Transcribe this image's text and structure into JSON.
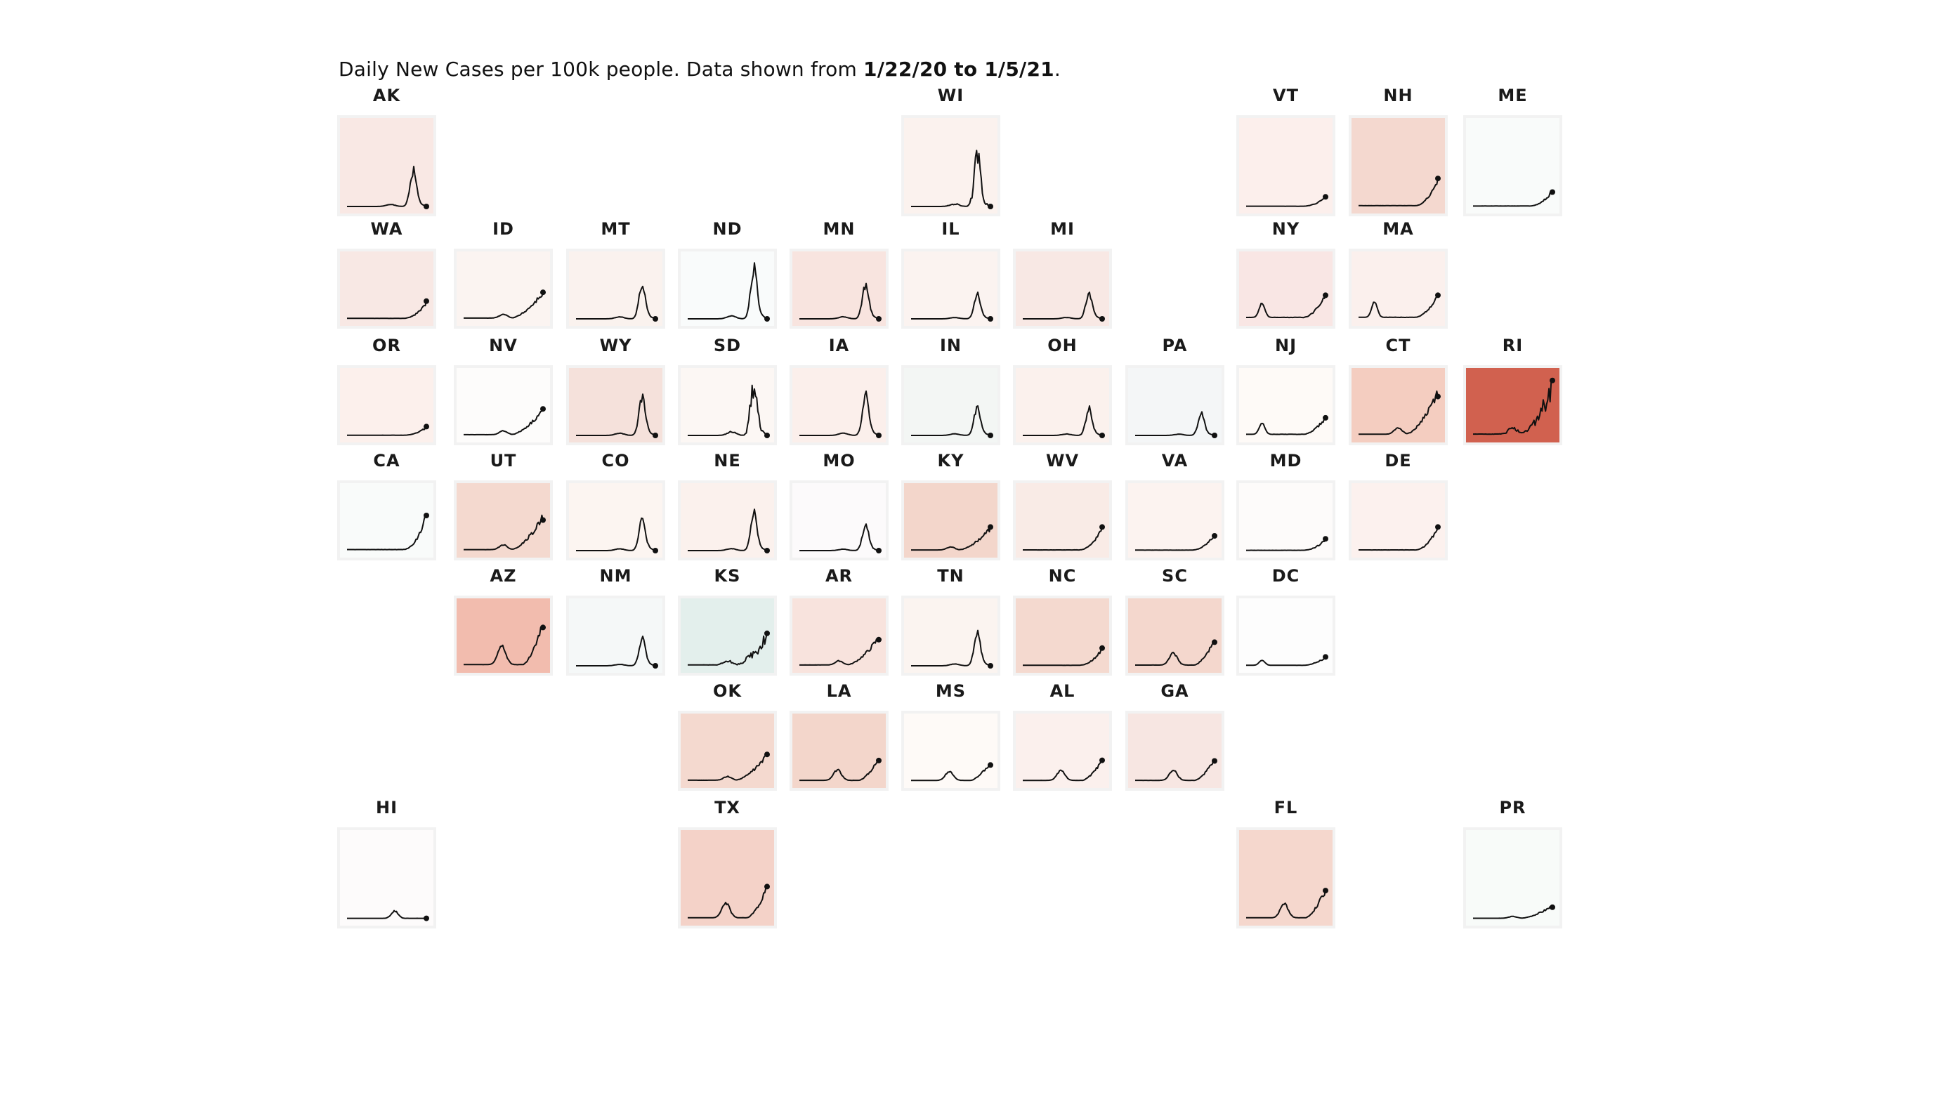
{
  "title": {
    "prefix": "Daily New Cases per 100k people. Data shown from ",
    "range": "1/22/20 to 1/5/21",
    "suffix": "."
  },
  "chart_data": {
    "type": "line",
    "layout": "tile-grid-map",
    "series_kind": "daily new cases per 100k",
    "tiles": [
      {
        "label": "AK",
        "row": 0,
        "col": 0,
        "fill": "#f9e8e4",
        "shape": "peakLate",
        "h": 0.5
      },
      {
        "label": "WI",
        "row": 0,
        "col": 5,
        "fill": "#fbf2ee",
        "shape": "peakLate",
        "h": 0.7,
        "spiky": true
      },
      {
        "label": "VT",
        "row": 0,
        "col": 8,
        "fill": "#fcefec",
        "shape": "riseEnd",
        "h": 0.12
      },
      {
        "label": "NH",
        "row": 0,
        "col": 9,
        "fill": "#f4d8cf",
        "shape": "riseEnd",
        "h": 0.35
      },
      {
        "label": "ME",
        "row": 0,
        "col": 10,
        "fill": "#f9fbfa",
        "shape": "riseEnd",
        "h": 0.18
      },
      {
        "label": "WA",
        "row": 1,
        "col": 0,
        "fill": "#f8e8e4",
        "shape": "riseEnd",
        "h": 0.3
      },
      {
        "label": "ID",
        "row": 1,
        "col": 1,
        "fill": "#fbf4f1",
        "shape": "jaggedRise",
        "h": 0.45
      },
      {
        "label": "MT",
        "row": 1,
        "col": 2,
        "fill": "#faf2ee",
        "shape": "peakLate",
        "h": 0.55
      },
      {
        "label": "ND",
        "row": 1,
        "col": 3,
        "fill": "#f9fbfb",
        "shape": "peakLate",
        "h": 0.95
      },
      {
        "label": "MN",
        "row": 1,
        "col": 4,
        "fill": "#f8e4df",
        "shape": "peakLate",
        "h": 0.6
      },
      {
        "label": "IL",
        "row": 1,
        "col": 5,
        "fill": "#fbf3f0",
        "shape": "peakLate",
        "h": 0.45
      },
      {
        "label": "MI",
        "row": 1,
        "col": 6,
        "fill": "#f8e8e4",
        "shape": "peakLate",
        "h": 0.45
      },
      {
        "label": "NY",
        "row": 1,
        "col": 8,
        "fill": "#f9e6e4",
        "shape": "twoHump",
        "h": 0.4
      },
      {
        "label": "MA",
        "row": 1,
        "col": 9,
        "fill": "#fbf0ed",
        "shape": "twoHump",
        "h": 0.4
      },
      {
        "label": "OR",
        "row": 2,
        "col": 0,
        "fill": "#fcf0ec",
        "shape": "riseEnd",
        "h": 0.15
      },
      {
        "label": "NV",
        "row": 2,
        "col": 1,
        "fill": "#fdfcfb",
        "shape": "jaggedRise",
        "h": 0.45
      },
      {
        "label": "WY",
        "row": 2,
        "col": 2,
        "fill": "#f5e1db",
        "shape": "peakLate",
        "h": 0.7
      },
      {
        "label": "SD",
        "row": 2,
        "col": 3,
        "fill": "#fcf7f4",
        "shape": "peakLate",
        "h": 0.85,
        "spiky": true
      },
      {
        "label": "IA",
        "row": 2,
        "col": 4,
        "fill": "#fbefeb",
        "shape": "peakLate",
        "h": 0.75
      },
      {
        "label": "IN",
        "row": 2,
        "col": 5,
        "fill": "#f3f6f4",
        "shape": "peakLate",
        "h": 0.5
      },
      {
        "label": "OH",
        "row": 2,
        "col": 6,
        "fill": "#fbf1ed",
        "shape": "peakLate",
        "h": 0.5
      },
      {
        "label": "PA",
        "row": 2,
        "col": 7,
        "fill": "#f4f6f7",
        "shape": "peakLate",
        "h": 0.4
      },
      {
        "label": "NJ",
        "row": 2,
        "col": 8,
        "fill": "#fefaf7",
        "shape": "twoHump",
        "h": 0.3
      },
      {
        "label": "CT",
        "row": 2,
        "col": 9,
        "fill": "#f4cdc0",
        "shape": "jaggedRise",
        "h": 0.75
      },
      {
        "label": "RI",
        "row": 2,
        "col": 10,
        "fill": "#d1614f",
        "shape": "jaggedRise",
        "h": 0.95,
        "spiky": true
      },
      {
        "label": "CA",
        "row": 3,
        "col": 0,
        "fill": "#f9fbfa",
        "shape": "riseEnd",
        "h": 0.6
      },
      {
        "label": "UT",
        "row": 3,
        "col": 1,
        "fill": "#f4d9cf",
        "shape": "jaggedRise",
        "h": 0.6
      },
      {
        "label": "CO",
        "row": 3,
        "col": 2,
        "fill": "#fcf5f1",
        "shape": "peakLate",
        "h": 0.55
      },
      {
        "label": "NE",
        "row": 3,
        "col": 3,
        "fill": "#fbf1ed",
        "shape": "peakLate",
        "h": 0.7
      },
      {
        "label": "MO",
        "row": 3,
        "col": 4,
        "fill": "#fcfafb",
        "shape": "peakLate",
        "h": 0.45
      },
      {
        "label": "KY",
        "row": 3,
        "col": 5,
        "fill": "#f3d6cb",
        "shape": "jaggedRise",
        "h": 0.4
      },
      {
        "label": "WV",
        "row": 3,
        "col": 6,
        "fill": "#f9ebe6",
        "shape": "riseEnd",
        "h": 0.4
      },
      {
        "label": "VA",
        "row": 3,
        "col": 7,
        "fill": "#fcf3f0",
        "shape": "riseEnd",
        "h": 0.25
      },
      {
        "label": "MD",
        "row": 3,
        "col": 8,
        "fill": "#fdfbfa",
        "shape": "riseEnd",
        "h": 0.2
      },
      {
        "label": "DE",
        "row": 3,
        "col": 9,
        "fill": "#fcf1ee",
        "shape": "riseEnd",
        "h": 0.4
      },
      {
        "label": "AZ",
        "row": 4,
        "col": 1,
        "fill": "#f2bcae",
        "shape": "summerRise",
        "h": 0.65
      },
      {
        "label": "NM",
        "row": 4,
        "col": 2,
        "fill": "#f5f8f8",
        "shape": "peakLate",
        "h": 0.5
      },
      {
        "label": "KS",
        "row": 4,
        "col": 3,
        "fill": "#e3efec",
        "shape": "jaggedRise",
        "h": 0.55,
        "spiky": true
      },
      {
        "label": "AR",
        "row": 4,
        "col": 4,
        "fill": "#f8e3dd",
        "shape": "jaggedRise",
        "h": 0.45
      },
      {
        "label": "TN",
        "row": 4,
        "col": 5,
        "fill": "#fbf4f0",
        "shape": "peakLate",
        "h": 0.6
      },
      {
        "label": "NC",
        "row": 4,
        "col": 6,
        "fill": "#f4d9cf",
        "shape": "riseEnd",
        "h": 0.3
      },
      {
        "label": "SC",
        "row": 4,
        "col": 7,
        "fill": "#f4d7cd",
        "shape": "summerRise",
        "h": 0.4
      },
      {
        "label": "DC",
        "row": 4,
        "col": 8,
        "fill": "#fdfdfd",
        "shape": "twoHump",
        "h": 0.15
      },
      {
        "label": "OK",
        "row": 5,
        "col": 3,
        "fill": "#f4d9cf",
        "shape": "jaggedRise",
        "h": 0.45
      },
      {
        "label": "LA",
        "row": 5,
        "col": 4,
        "fill": "#f3d6cb",
        "shape": "summerRise",
        "h": 0.35
      },
      {
        "label": "MS",
        "row": 5,
        "col": 5,
        "fill": "#fefaf7",
        "shape": "summerRise",
        "h": 0.3
      },
      {
        "label": "AL",
        "row": 5,
        "col": 6,
        "fill": "#fbf0ed",
        "shape": "summerRise",
        "h": 0.35
      },
      {
        "label": "GA",
        "row": 5,
        "col": 7,
        "fill": "#f7e6e2",
        "shape": "summerRise",
        "h": 0.35
      },
      {
        "label": "HI",
        "row": 6,
        "col": 0,
        "fill": "#fdfbfb",
        "shape": "flatBump",
        "h": 0.1
      },
      {
        "label": "TX",
        "row": 6,
        "col": 3,
        "fill": "#f4d2c8",
        "shape": "summerRise",
        "h": 0.4
      },
      {
        "label": "FL",
        "row": 6,
        "col": 8,
        "fill": "#f5d7cd",
        "shape": "summerRise",
        "h": 0.35
      },
      {
        "label": "PR",
        "row": 6,
        "col": 10,
        "fill": "#f8fbf9",
        "shape": "jaggedRise",
        "h": 0.15
      }
    ]
  }
}
